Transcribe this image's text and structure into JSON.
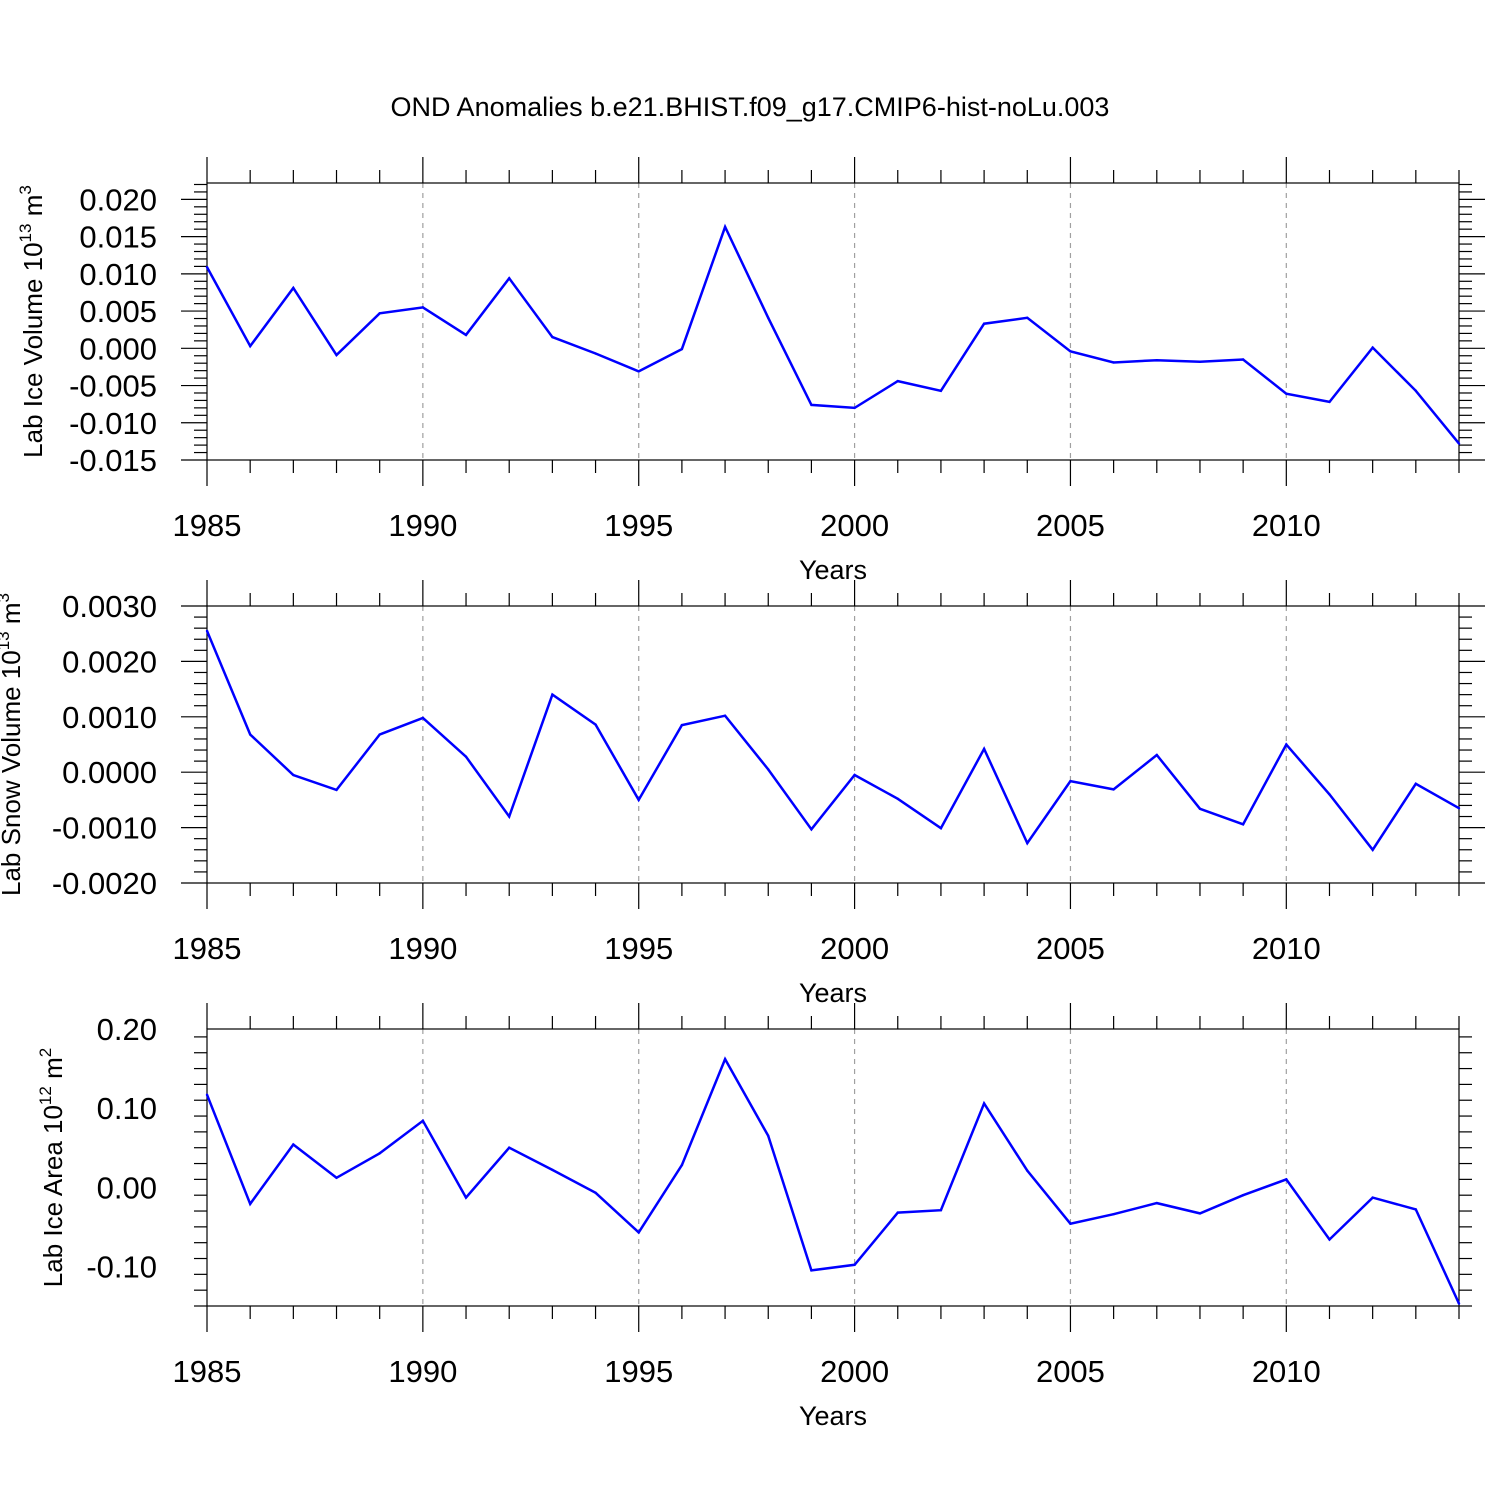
{
  "title": "OND Anomalies b.e21.BHIST.f09_g17.CMIP6-hist-noLu.003",
  "line_color": "#0000ff",
  "chart_data": [
    {
      "type": "line",
      "xlabel": "Years",
      "ylabel_main": "Lab Ice Volume 10",
      "ylabel_exp": "13",
      "ylabel_unit": " m",
      "ylabel_unit_exp": "3",
      "xlim": [
        1985,
        2014
      ],
      "ylim": [
        -0.015,
        0.0222
      ],
      "xticks": [
        1985,
        1990,
        1995,
        2000,
        2005,
        2010
      ],
      "yticks": [
        -0.015,
        -0.01,
        -0.005,
        0.0,
        0.005,
        0.01,
        0.015,
        0.02
      ],
      "ytick_labels": [
        "-0.015",
        "-0.010",
        "-0.005",
        "0.000",
        "0.005",
        "0.010",
        "0.015",
        "0.020"
      ],
      "grid": "dashed vertical at major x ticks",
      "x": [
        1985,
        1986,
        1987,
        1988,
        1989,
        1990,
        1991,
        1992,
        1993,
        1994,
        1995,
        1996,
        1997,
        1998,
        1999,
        2000,
        2001,
        2002,
        2003,
        2004,
        2005,
        2006,
        2007,
        2008,
        2009,
        2010,
        2011,
        2012,
        2013,
        2014
      ],
      "values": [
        0.0109,
        0.0003,
        0.0081,
        -0.0009,
        0.0047,
        0.0055,
        0.0018,
        0.0094,
        0.0015,
        -0.0007,
        -0.0031,
        -0.0001,
        0.0163,
        0.0041,
        -0.0076,
        -0.008,
        -0.0044,
        -0.0057,
        0.0033,
        0.0041,
        -0.0004,
        -0.0019,
        -0.0016,
        -0.0018,
        -0.0015,
        -0.0061,
        -0.0072,
        0.0001,
        -0.0057,
        -0.0128
      ]
    },
    {
      "type": "line",
      "xlabel": "Years",
      "ylabel_main": "Lab Snow Volume 10",
      "ylabel_exp": "13",
      "ylabel_unit": " m",
      "ylabel_unit_exp": "3",
      "xlim": [
        1985,
        2014
      ],
      "ylim": [
        -0.002,
        0.003
      ],
      "xticks": [
        1985,
        1990,
        1995,
        2000,
        2005,
        2010
      ],
      "yticks": [
        -0.002,
        -0.001,
        0.0,
        0.001,
        0.002,
        0.003
      ],
      "ytick_labels": [
        "-0.0020",
        "-0.0010",
        "0.0000",
        "0.0010",
        "0.0020",
        "0.0030"
      ],
      "grid": "dashed vertical at major x ticks",
      "x": [
        1985,
        1986,
        1987,
        1988,
        1989,
        1990,
        1991,
        1992,
        1993,
        1994,
        1995,
        1996,
        1997,
        1998,
        1999,
        2000,
        2001,
        2002,
        2003,
        2004,
        2005,
        2006,
        2007,
        2008,
        2009,
        2010,
        2011,
        2012,
        2013,
        2014
      ],
      "values": [
        0.00255,
        0.00068,
        -5e-05,
        -0.00032,
        0.00068,
        0.00098,
        0.00028,
        -0.0008,
        0.0014,
        0.00086,
        -0.0005,
        0.00085,
        0.00102,
        5e-05,
        -0.00103,
        -5e-05,
        -0.00048,
        -0.00101,
        0.00042,
        -0.00128,
        -0.00016,
        -0.00031,
        0.00031,
        -0.00066,
        -0.00094,
        0.0005,
        -0.0004,
        -0.0014,
        -0.00021,
        -0.00065
      ]
    },
    {
      "type": "line",
      "xlabel": "Years",
      "ylabel_main": "Lab Ice Area 10",
      "ylabel_exp": "12",
      "ylabel_unit": " m",
      "ylabel_unit_exp": "2",
      "xlim": [
        1985,
        2014
      ],
      "ylim": [
        -0.15,
        0.2
      ],
      "xticks": [
        1985,
        1990,
        1995,
        2000,
        2005,
        2010
      ],
      "yticks": [
        -0.1,
        0.0,
        0.1,
        0.2
      ],
      "ytick_labels": [
        "-0.10",
        "0.00",
        "0.10",
        "0.20"
      ],
      "grid": "dashed vertical at major x ticks",
      "x": [
        1985,
        1986,
        1987,
        1988,
        1989,
        1990,
        1991,
        1992,
        1993,
        1994,
        1995,
        1996,
        1997,
        1998,
        1999,
        2000,
        2001,
        2002,
        2003,
        2004,
        2005,
        2006,
        2007,
        2008,
        2009,
        2010,
        2011,
        2012,
        2013,
        2014
      ],
      "values": [
        0.117,
        -0.021,
        0.054,
        0.012,
        0.043,
        0.084,
        -0.013,
        0.05,
        0.022,
        -0.007,
        -0.057,
        0.028,
        0.162,
        0.065,
        -0.105,
        -0.098,
        -0.032,
        -0.029,
        0.106,
        0.021,
        -0.046,
        -0.034,
        -0.02,
        -0.033,
        -0.01,
        0.01,
        -0.066,
        -0.013,
        -0.028,
        -0.147
      ]
    }
  ]
}
